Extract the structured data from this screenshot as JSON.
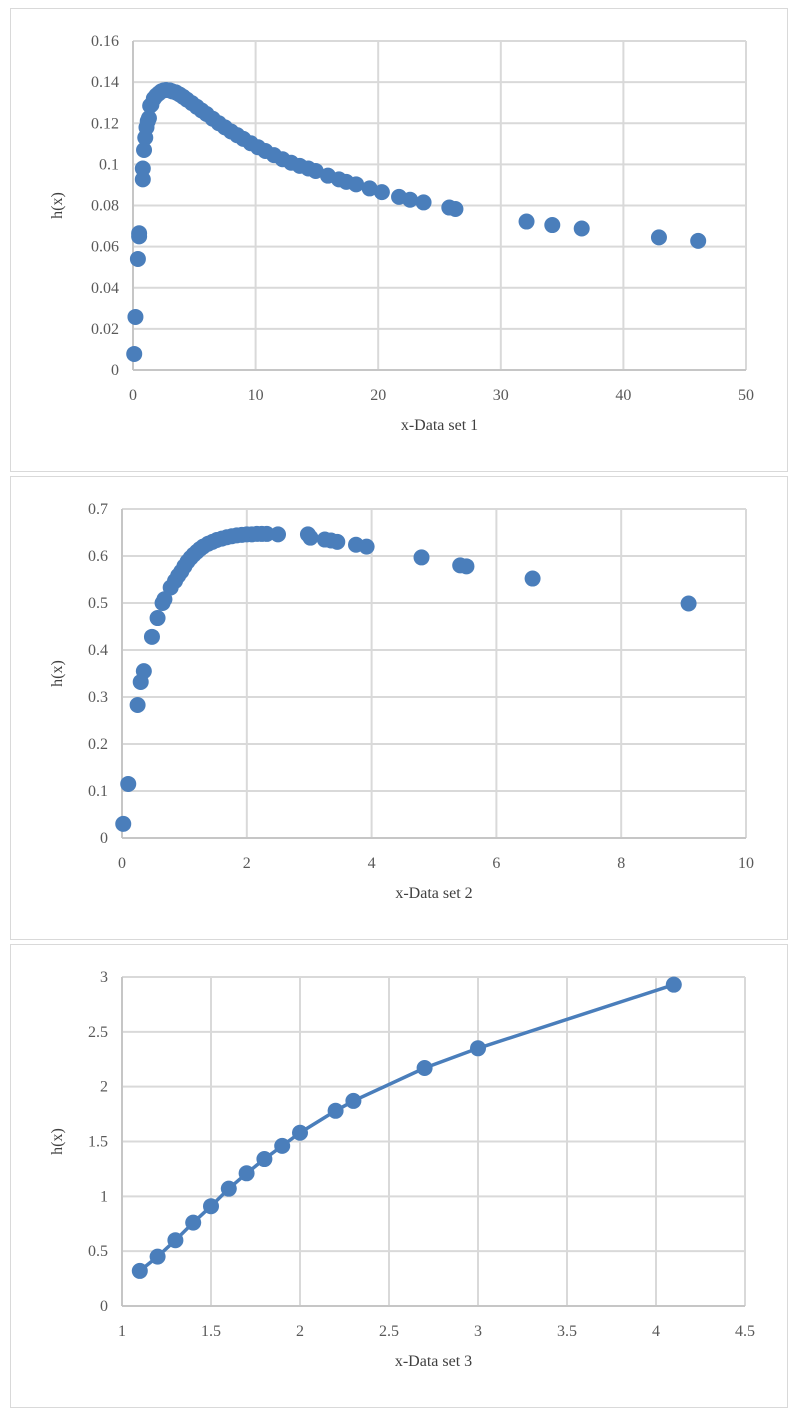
{
  "chart_data": [
    {
      "type": "scatter",
      "xlabel": "x-Data set 1",
      "ylabel": "h(x)",
      "xlim": [
        0,
        50
      ],
      "ylim": [
        0,
        0.16
      ],
      "x_ticks": [
        "0",
        "10",
        "20",
        "30",
        "40",
        "50"
      ],
      "y_ticks": [
        "0",
        "0.02",
        "0.04",
        "0.06",
        "0.08",
        "0.1",
        "0.12",
        "0.14",
        "0.16"
      ],
      "grid": true,
      "color": "#4a7ebb",
      "series": [
        {
          "x": [
            0.1,
            0.2,
            0.4,
            0.5,
            0.5,
            0.8,
            0.8,
            0.9,
            1.0,
            1.1,
            1.2,
            1.3,
            1.4,
            1.5,
            1.7,
            1.9,
            2.1,
            2.3,
            2.5,
            2.7,
            3.0,
            3.2,
            3.5,
            3.8,
            4.1,
            4.4,
            4.8,
            5.2,
            5.6,
            6.0,
            6.5,
            7.0,
            7.5,
            8.0,
            8.5,
            9.0,
            9.6,
            10.2,
            10.8,
            11.5,
            12.2,
            12.9,
            13.6,
            14.3,
            14.9,
            15.9,
            16.8,
            17.4,
            18.2,
            19.3,
            20.3,
            21.7,
            22.6,
            23.7,
            25.8,
            26.3,
            32.1,
            34.2,
            36.6,
            42.9,
            46.1
          ],
          "y": [
            0.0078,
            0.0258,
            0.054,
            0.065,
            0.0665,
            0.0927,
            0.098,
            0.107,
            0.113,
            0.118,
            0.121,
            0.1225,
            0.1285,
            0.129,
            0.132,
            0.1335,
            0.1345,
            0.1355,
            0.136,
            0.1362,
            0.136,
            0.1355,
            0.135,
            0.134,
            0.1328,
            0.1315,
            0.1298,
            0.128,
            0.1262,
            0.1245,
            0.1222,
            0.12,
            0.118,
            0.116,
            0.1142,
            0.1124,
            0.1103,
            0.1083,
            0.1065,
            0.1045,
            0.1025,
            0.1008,
            0.0993,
            0.098,
            0.0968,
            0.0945,
            0.0927,
            0.0915,
            0.0903,
            0.0883,
            0.0865,
            0.0842,
            0.0828,
            0.0815,
            0.079,
            0.0783,
            0.0722,
            0.0705,
            0.0688,
            0.0645,
            0.0628
          ]
        }
      ]
    },
    {
      "type": "scatter",
      "xlabel": "x-Data set 2",
      "ylabel": "h(x)",
      "xlim": [
        0,
        10
      ],
      "ylim": [
        0,
        0.7
      ],
      "x_ticks": [
        "0",
        "2",
        "4",
        "6",
        "8",
        "10"
      ],
      "y_ticks": [
        "0",
        "0.1",
        "0.2",
        "0.3",
        "0.4",
        "0.5",
        "0.6",
        "0.7"
      ],
      "grid": true,
      "color": "#4a7ebb",
      "series": [
        {
          "x": [
            0.02,
            0.1,
            0.25,
            0.3,
            0.35,
            0.48,
            0.57,
            0.65,
            0.68,
            0.78,
            0.85,
            0.9,
            0.95,
            1.0,
            1.05,
            1.1,
            1.15,
            1.2,
            1.25,
            1.3,
            1.38,
            1.45,
            1.52,
            1.6,
            1.68,
            1.76,
            1.84,
            1.92,
            2.0,
            2.08,
            2.16,
            2.24,
            2.32,
            2.5,
            2.98,
            3.02,
            3.25,
            3.35,
            3.45,
            3.75,
            3.92,
            4.8,
            5.42,
            5.52,
            6.58,
            9.08
          ],
          "y": [
            0.03,
            0.115,
            0.283,
            0.332,
            0.355,
            0.428,
            0.468,
            0.5,
            0.508,
            0.533,
            0.547,
            0.558,
            0.567,
            0.578,
            0.588,
            0.596,
            0.603,
            0.609,
            0.615,
            0.62,
            0.626,
            0.63,
            0.634,
            0.637,
            0.64,
            0.642,
            0.644,
            0.645,
            0.646,
            0.646,
            0.647,
            0.647,
            0.647,
            0.646,
            0.646,
            0.639,
            0.635,
            0.633,
            0.63,
            0.624,
            0.62,
            0.597,
            0.58,
            0.578,
            0.552,
            0.499
          ]
        }
      ]
    },
    {
      "type": "line",
      "xlabel": "x-Data set 3",
      "ylabel": "h(x)",
      "xlim": [
        1,
        4.5
      ],
      "ylim": [
        0,
        3
      ],
      "x_ticks": [
        "1",
        "1.5",
        "2",
        "2.5",
        "3",
        "3.5",
        "4",
        "4.5"
      ],
      "y_ticks": [
        "0",
        "0.5",
        "1",
        "1.5",
        "2",
        "2.5",
        "3"
      ],
      "grid": true,
      "color": "#4a7ebb",
      "series": [
        {
          "x": [
            1.1,
            1.2,
            1.3,
            1.4,
            1.5,
            1.6,
            1.7,
            1.8,
            1.9,
            2.0,
            2.2,
            2.3,
            2.7,
            3.0,
            4.1
          ],
          "y": [
            0.32,
            0.45,
            0.6,
            0.76,
            0.91,
            1.07,
            1.21,
            1.34,
            1.46,
            1.58,
            1.78,
            1.87,
            2.17,
            2.35,
            2.93
          ]
        }
      ]
    }
  ]
}
